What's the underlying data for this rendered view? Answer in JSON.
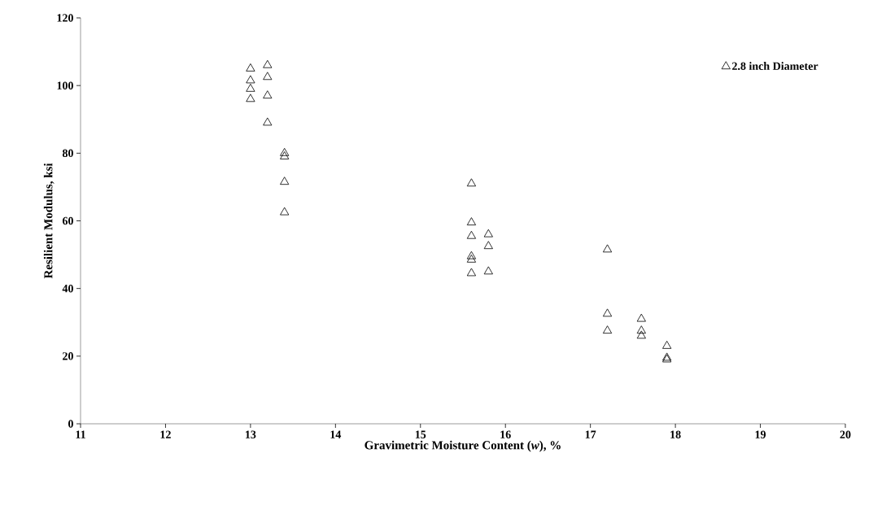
{
  "chart_data": {
    "type": "scatter",
    "xlabel": "Gravimetric Moisture Content (*w*), %",
    "ylabel": "Resilient Modulus, ksi",
    "series": [
      {
        "name": "2.8 inch Diameter",
        "color": "#000000",
        "x": [
          13.0,
          13.0,
          13.0,
          13.0,
          13.2,
          13.2,
          13.2,
          13.2,
          13.4,
          13.4,
          13.4,
          13.4,
          15.6,
          15.6,
          15.6,
          15.6,
          15.6,
          15.6,
          15.8,
          15.8,
          15.8,
          17.2,
          17.2,
          17.2,
          17.6,
          17.6,
          17.6,
          17.9,
          17.9,
          17.9
        ],
        "values": [
          105,
          101.5,
          99,
          96,
          106,
          102.5,
          97,
          89,
          80,
          79,
          71.5,
          62.5,
          71,
          59.5,
          55.5,
          49.5,
          48.5,
          44.5,
          56,
          52.5,
          45,
          51.5,
          32.5,
          27.5,
          31,
          27.5,
          26,
          23,
          19.5,
          19
        ]
      }
    ],
    "xlim": [
      11,
      20
    ],
    "xticks": [
      11,
      12,
      13,
      14,
      15,
      16,
      17,
      18,
      19,
      20
    ],
    "ylim": [
      0,
      120
    ],
    "yticks": [
      0,
      20,
      40,
      60,
      80,
      100,
      120
    ],
    "marker": "triangle",
    "legend": "top right",
    "grid": false
  }
}
